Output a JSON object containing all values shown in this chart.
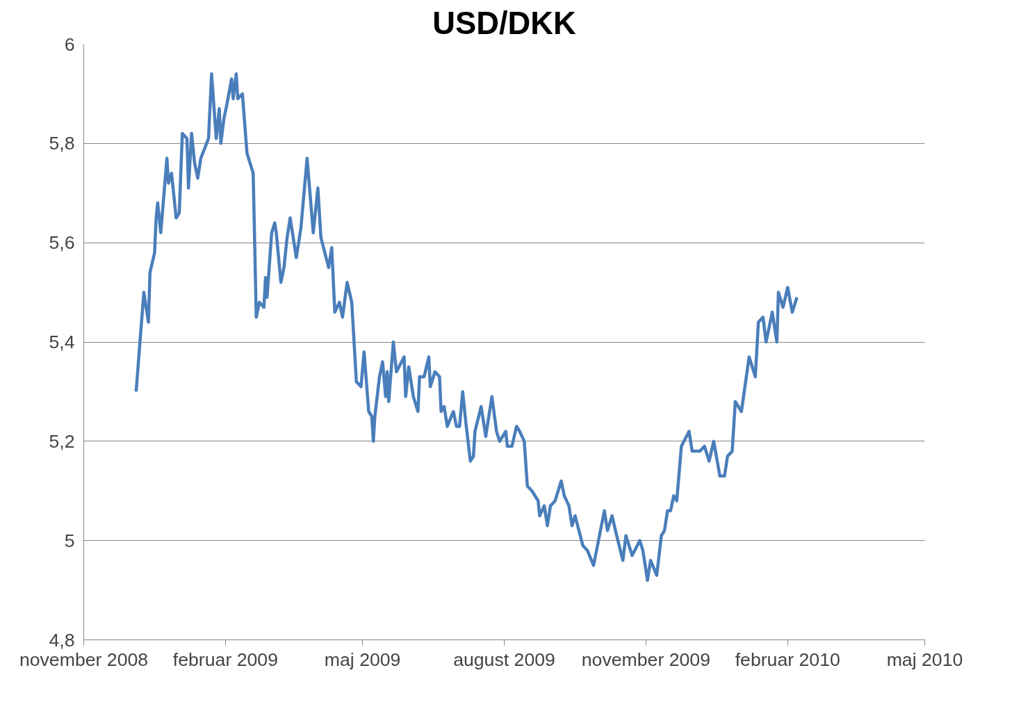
{
  "chart_data": {
    "type": "line",
    "title": "USD/DKK",
    "x": [
      "2008-12-05",
      "2008-12-10",
      "2008-12-13",
      "2008-12-14",
      "2008-12-17",
      "2008-12-18",
      "2008-12-19",
      "2008-12-21",
      "2008-12-25",
      "2008-12-26",
      "2008-12-28",
      "2008-12-31",
      "2009-01-02",
      "2009-01-04",
      "2009-01-07",
      "2009-01-08",
      "2009-01-10",
      "2009-01-12",
      "2009-01-14",
      "2009-01-16",
      "2009-01-21",
      "2009-01-23",
      "2009-01-26",
      "2009-01-28",
      "2009-01-29",
      "2009-01-31",
      "2009-02-02",
      "2009-02-05",
      "2009-02-06",
      "2009-02-08",
      "2009-02-09",
      "2009-02-12",
      "2009-02-15",
      "2009-02-19",
      "2009-02-21",
      "2009-02-23",
      "2009-02-26",
      "2009-02-27",
      "2009-02-28",
      "2009-03-03",
      "2009-03-05",
      "2009-03-06",
      "2009-03-09",
      "2009-03-11",
      "2009-03-13",
      "2009-03-15",
      "2009-03-19",
      "2009-03-22",
      "2009-03-26",
      "2009-03-30",
      "2009-04-02",
      "2009-04-04",
      "2009-04-09",
      "2009-04-11",
      "2009-04-13",
      "2009-04-16",
      "2009-04-18",
      "2009-04-21",
      "2009-04-24",
      "2009-04-27",
      "2009-04-30",
      "2009-05-02",
      "2009-05-05",
      "2009-05-07",
      "2009-05-08",
      "2009-05-09",
      "2009-05-12",
      "2009-05-14",
      "2009-05-16",
      "2009-05-17",
      "2009-05-18",
      "2009-05-21",
      "2009-05-23",
      "2009-05-28",
      "2009-05-29",
      "2009-05-31",
      "2009-06-03",
      "2009-06-06",
      "2009-06-07",
      "2009-06-10",
      "2009-06-13",
      "2009-06-14",
      "2009-06-17",
      "2009-06-20",
      "2009-06-21",
      "2009-06-23",
      "2009-06-25",
      "2009-06-29",
      "2009-07-01",
      "2009-07-03",
      "2009-07-05",
      "2009-07-07",
      "2009-07-10",
      "2009-07-12",
      "2009-07-13",
      "2009-07-17",
      "2009-07-20",
      "2009-07-24",
      "2009-07-27",
      "2009-07-29",
      "2009-08-02",
      "2009-08-03",
      "2009-08-06",
      "2009-08-09",
      "2009-08-11",
      "2009-08-14",
      "2009-08-16",
      "2009-08-19",
      "2009-08-23",
      "2009-08-24",
      "2009-08-27",
      "2009-08-29",
      "2009-08-31",
      "2009-09-03",
      "2009-09-05",
      "2009-09-07",
      "2009-09-09",
      "2009-09-12",
      "2009-09-14",
      "2009-09-16",
      "2009-09-21",
      "2009-09-24",
      "2009-09-28",
      "2009-10-05",
      "2009-10-07",
      "2009-10-10",
      "2009-10-13",
      "2009-10-17",
      "2009-10-19",
      "2009-10-23",
      "2009-10-28",
      "2009-10-30",
      "2009-11-02",
      "2009-11-04",
      "2009-11-08",
      "2009-11-11",
      "2009-11-13",
      "2009-11-15",
      "2009-11-17",
      "2009-11-19",
      "2009-11-21",
      "2009-11-24",
      "2009-11-29",
      "2009-12-01",
      "2009-12-06",
      "2009-12-09",
      "2009-12-12",
      "2009-12-15",
      "2009-12-19",
      "2009-12-22",
      "2009-12-24",
      "2009-12-27",
      "2009-12-29",
      "2010-01-02",
      "2010-01-07",
      "2010-01-11",
      "2010-01-13",
      "2010-01-16",
      "2010-01-18",
      "2010-01-22",
      "2010-01-25",
      "2010-01-26",
      "2010-01-29",
      "2010-02-01",
      "2010-02-04",
      "2010-02-07"
    ],
    "series": [
      {
        "color": "#4a7ebb",
        "values": [
          5.3,
          5.5,
          5.44,
          5.54,
          5.58,
          5.65,
          5.68,
          5.62,
          5.77,
          5.72,
          5.74,
          5.65,
          5.66,
          5.82,
          5.81,
          5.71,
          5.82,
          5.76,
          5.73,
          5.77,
          5.81,
          5.94,
          5.81,
          5.87,
          5.8,
          5.85,
          5.88,
          5.93,
          5.89,
          5.94,
          5.89,
          5.9,
          5.78,
          5.74,
          5.45,
          5.48,
          5.47,
          5.53,
          5.49,
          5.62,
          5.64,
          5.62,
          5.52,
          5.55,
          5.61,
          5.65,
          5.57,
          5.63,
          5.77,
          5.62,
          5.71,
          5.61,
          5.55,
          5.59,
          5.46,
          5.48,
          5.45,
          5.52,
          5.48,
          5.32,
          5.31,
          5.38,
          5.26,
          5.25,
          5.2,
          5.25,
          5.33,
          5.36,
          5.29,
          5.34,
          5.28,
          5.4,
          5.34,
          5.37,
          5.29,
          5.35,
          5.29,
          5.26,
          5.33,
          5.33,
          5.37,
          5.31,
          5.34,
          5.33,
          5.26,
          5.27,
          5.23,
          5.26,
          5.23,
          5.23,
          5.3,
          5.24,
          5.16,
          5.17,
          5.22,
          5.27,
          5.21,
          5.29,
          5.22,
          5.2,
          5.22,
          5.19,
          5.19,
          5.23,
          5.22,
          5.2,
          5.11,
          5.1,
          5.08,
          5.05,
          5.07,
          5.03,
          5.07,
          5.08,
          5.1,
          5.12,
          5.09,
          5.07,
          5.03,
          5.05,
          4.99,
          4.98,
          4.95,
          5.06,
          5.02,
          5.05,
          5.01,
          4.96,
          5.01,
          4.97,
          5.0,
          4.98,
          4.92,
          4.96,
          4.93,
          5.01,
          5.02,
          5.06,
          5.06,
          5.09,
          5.08,
          5.19,
          5.22,
          5.18,
          5.18,
          5.19,
          5.16,
          5.2,
          5.13,
          5.13,
          5.17,
          5.18,
          5.28,
          5.26,
          5.37,
          5.33,
          5.44,
          5.45,
          5.4,
          5.46,
          5.4,
          5.5,
          5.47,
          5.51,
          5.46,
          5.49
        ]
      }
    ],
    "xlim": [
      "2008-11-01",
      "2010-05-01"
    ],
    "xticks": [
      {
        "value": "2008-11-01",
        "label": "november 2008"
      },
      {
        "value": "2009-02-01",
        "label": "februar 2009"
      },
      {
        "value": "2009-05-01",
        "label": "maj 2009"
      },
      {
        "value": "2009-08-01",
        "label": "august 2009"
      },
      {
        "value": "2009-11-01",
        "label": "november 2009"
      },
      {
        "value": "2010-02-01",
        "label": "februar 2010"
      },
      {
        "value": "2010-05-01",
        "label": "maj 2010"
      }
    ],
    "ylim": [
      4.8,
      6
    ],
    "yticks": [
      {
        "value": 4.8,
        "label": "4,8"
      },
      5,
      {
        "value": 5.2,
        "label": "5,2"
      },
      {
        "value": 5.4,
        "label": "5,4"
      },
      {
        "value": 5.6,
        "label": "5,6"
      },
      {
        "value": 5.8,
        "label": "5,8"
      },
      6
    ],
    "grid": "y",
    "marker": "none",
    "line_style": "solid"
  }
}
